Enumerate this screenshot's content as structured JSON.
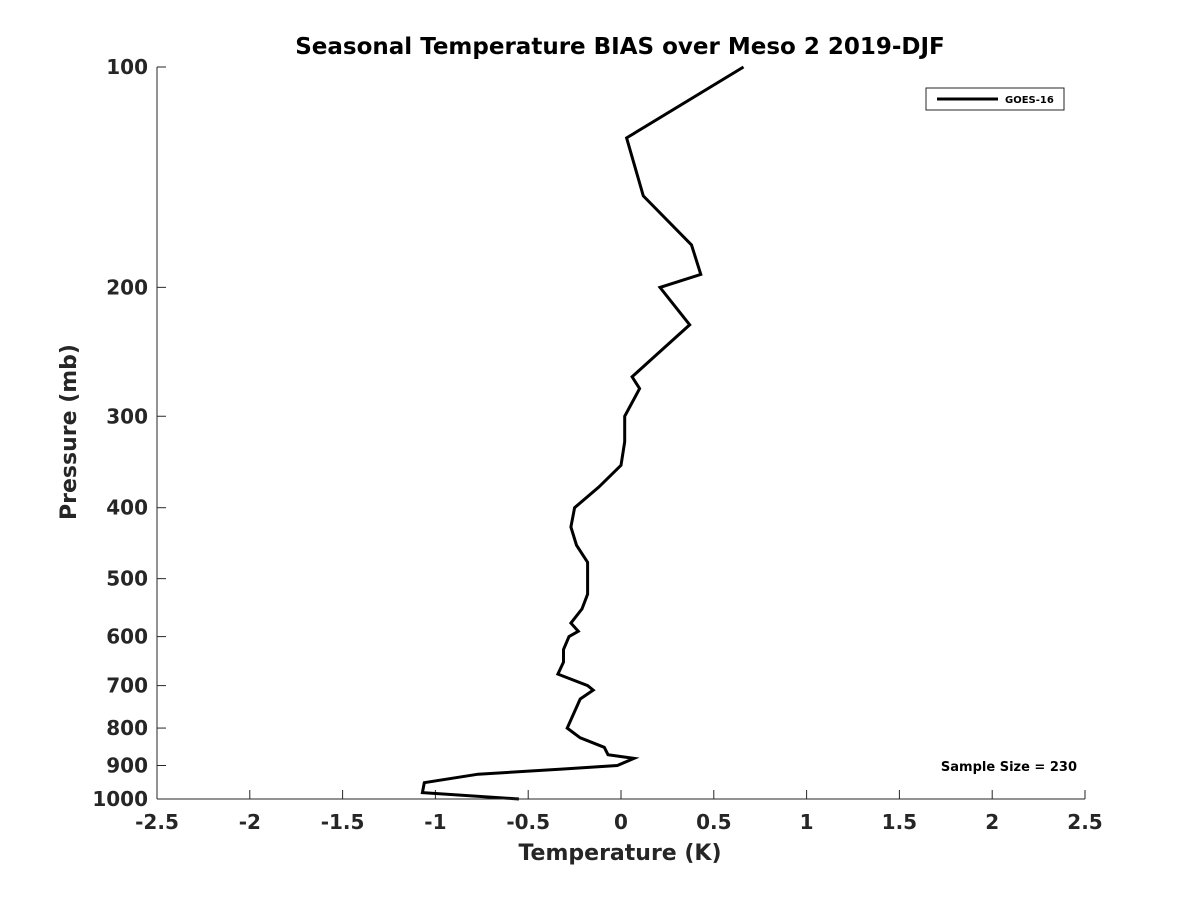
{
  "chart_data": {
    "type": "line",
    "title": "Seasonal Temperature BIAS over Meso 2  2019-DJF",
    "xlabel": "Temperature (K)",
    "ylabel": "Pressure (mb)",
    "xlim": [
      -2.5,
      2.5
    ],
    "ylim": [
      100,
      1000
    ],
    "yscale": "log",
    "y_reversed": true,
    "xticks": [
      -2.5,
      -2,
      -1.5,
      -1,
      -0.5,
      0,
      0.5,
      1,
      1.5,
      2,
      2.5
    ],
    "xtick_labels": [
      "-2.5",
      "-2",
      "-1.5",
      "-1",
      "-0.5",
      "0",
      "0.5",
      "1",
      "1.5",
      "2",
      "2.5"
    ],
    "yticks": [
      100,
      200,
      300,
      400,
      500,
      600,
      700,
      800,
      900,
      1000
    ],
    "ytick_labels": [
      "100",
      "200",
      "300",
      "400",
      "500",
      "600",
      "700",
      "800",
      "900",
      "1000"
    ],
    "grid": false,
    "legend_position": "top-right",
    "series": [
      {
        "name": "GOES-16",
        "color": "#000000",
        "points": [
          {
            "x": 0.66,
            "p": 100
          },
          {
            "x": 0.03,
            "p": 125
          },
          {
            "x": 0.12,
            "p": 150
          },
          {
            "x": 0.38,
            "p": 175
          },
          {
            "x": 0.43,
            "p": 192
          },
          {
            "x": 0.21,
            "p": 200
          },
          {
            "x": 0.37,
            "p": 225
          },
          {
            "x": 0.17,
            "p": 250
          },
          {
            "x": 0.06,
            "p": 265
          },
          {
            "x": 0.1,
            "p": 275
          },
          {
            "x": 0.02,
            "p": 300
          },
          {
            "x": 0.02,
            "p": 325
          },
          {
            "x": 0.0,
            "p": 350
          },
          {
            "x": -0.12,
            "p": 375
          },
          {
            "x": -0.25,
            "p": 400
          },
          {
            "x": -0.27,
            "p": 425
          },
          {
            "x": -0.24,
            "p": 450
          },
          {
            "x": -0.18,
            "p": 475
          },
          {
            "x": -0.18,
            "p": 500
          },
          {
            "x": -0.18,
            "p": 525
          },
          {
            "x": -0.21,
            "p": 550
          },
          {
            "x": -0.27,
            "p": 575
          },
          {
            "x": -0.23,
            "p": 590
          },
          {
            "x": -0.28,
            "p": 600
          },
          {
            "x": -0.31,
            "p": 625
          },
          {
            "x": -0.31,
            "p": 650
          },
          {
            "x": -0.34,
            "p": 675
          },
          {
            "x": -0.18,
            "p": 700
          },
          {
            "x": -0.15,
            "p": 710
          },
          {
            "x": -0.22,
            "p": 730
          },
          {
            "x": -0.29,
            "p": 800
          },
          {
            "x": -0.22,
            "p": 825
          },
          {
            "x": -0.09,
            "p": 850
          },
          {
            "x": -0.07,
            "p": 870
          },
          {
            "x": 0.07,
            "p": 880
          },
          {
            "x": -0.02,
            "p": 900
          },
          {
            "x": -0.31,
            "p": 910
          },
          {
            "x": -0.77,
            "p": 925
          },
          {
            "x": -1.06,
            "p": 950
          },
          {
            "x": -1.07,
            "p": 980
          },
          {
            "x": -0.55,
            "p": 1000
          }
        ]
      }
    ],
    "annotation": "Sample Size = 230"
  }
}
